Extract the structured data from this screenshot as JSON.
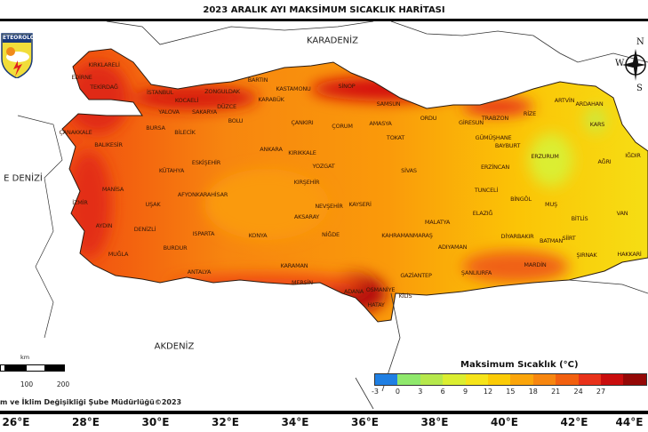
{
  "title": "2023 ARALIK AYI MAKSİMUM SICAKLIK HARİTASI",
  "logo_text": "ETEOROLOJİ",
  "seas": {
    "black_sea": "KARADENİZ",
    "mediterranean": "AKDENİZ",
    "aegean": "E DENİZİ"
  },
  "compass": {
    "n": "N",
    "w": "W",
    "s": "S"
  },
  "provinces": [
    "KIRKLARELİ",
    "EDİRNE",
    "TEKİRDAĞ",
    "İSTANBUL",
    "KOCAELİ",
    "ZONGULDAK",
    "BARTIN",
    "KARABÜK",
    "DÜZCE",
    "SAKARYA",
    "YALOVA",
    "BURSA",
    "BİLECİK",
    "BOLU",
    "ÇANAKKALE",
    "BALIKESİR",
    "ESKİŞEHİR",
    "KÜTAHYA",
    "ANKARA",
    "KASTAMONU",
    "SİNOP",
    "ÇANKIRI",
    "ÇORUM",
    "AMASYA",
    "SAMSUN",
    "ORDU",
    "GİRESUN",
    "TOKAT",
    "KIRIKKALE",
    "YOZGAT",
    "SİVAS",
    "KIRŞEHİR",
    "KAYSERİ",
    "NEVŞEHİR",
    "AKSARAY",
    "NİĞDE",
    "KONYA",
    "KARAMAN",
    "MERSİN",
    "ADANA",
    "OSMANİYE",
    "HATAY",
    "KİLİS",
    "GAZİANTEP",
    "KAHRAMANMARAŞ",
    "MALATYA",
    "ADIYAMAN",
    "ŞANLIURFA",
    "ELAZIĞ",
    "TUNCELİ",
    "BİNGÖL",
    "MUŞ",
    "BİTLİS",
    "VAN",
    "DİYARBAKIR",
    "BATMAN",
    "SİİRT",
    "ŞIRNAK",
    "HAKKARİ",
    "MARDİN",
    "ERZURUM",
    "ERZİNCAN",
    "BAYBURT",
    "GÜMÜŞHANE",
    "TRABZON",
    "RİZE",
    "ARTVİN",
    "ARDAHAN",
    "KARS",
    "AĞRI",
    "IĞDIR",
    "MANİSA",
    "İZMİR",
    "AYDIN",
    "DENİZLİ",
    "UŞAK",
    "AFYONKARAHİSAR",
    "ISPARTA",
    "BURDUR",
    "MUĞLA",
    "ANTALYA"
  ],
  "longitudes": [
    "26°E",
    "28°E",
    "30°E",
    "32°E",
    "34°E",
    "36°E",
    "38°E",
    "40°E",
    "42°E",
    "44°E"
  ],
  "colorbar": {
    "title": "Maksimum Sıcaklık (°C)",
    "ticks": [
      "-3",
      "0",
      "3",
      "6",
      "9",
      "12",
      "15",
      "18",
      "21",
      "24",
      "27"
    ],
    "colors": [
      "#1f7fe3",
      "#8fe86c",
      "#b6e84c",
      "#dbee31",
      "#f6e41a",
      "#fbcb06",
      "#fba50a",
      "#f7860f",
      "#f2600f",
      "#e8321a",
      "#c90d0d",
      "#940806"
    ]
  },
  "scale_bar": {
    "unit": "km",
    "labels": [
      "100",
      "200"
    ]
  },
  "credit": "m ve İklim Değişikliği Şube Müdürlüğü©2023"
}
